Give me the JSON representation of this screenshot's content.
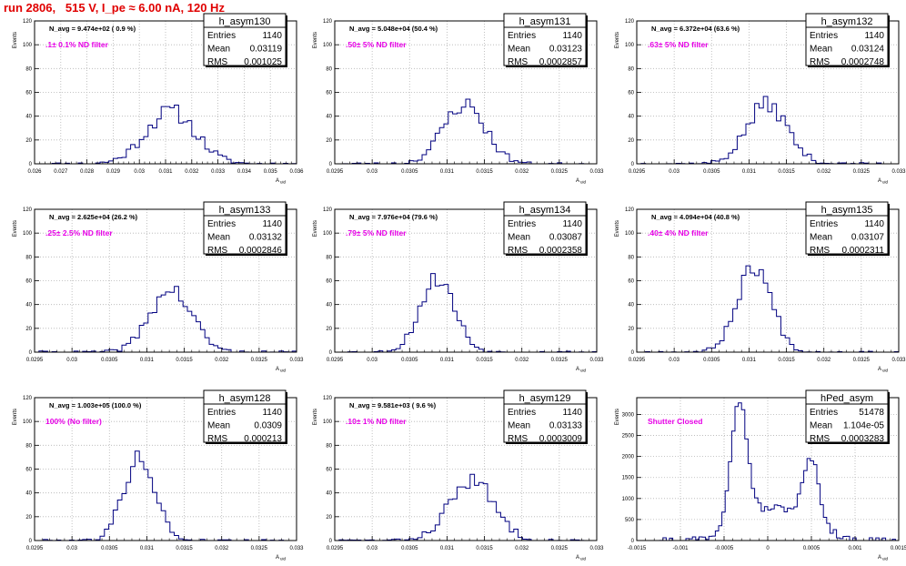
{
  "header": {
    "title": "run 2806,   515 V, I_pe ≈ 6.00 nA, 120 Hz"
  },
  "colors": {
    "hist": "#000080",
    "annotation": "#e600e6",
    "title": "#e00000",
    "grid": "#b4b4b4"
  },
  "chart_data": [
    {
      "type": "bar",
      "name": "h_asym130",
      "ylabel": "Events",
      "xlabel": "A_uid",
      "xlim": [
        0.026,
        0.036
      ],
      "ylim": [
        0,
        120
      ],
      "xticks": [
        0.026,
        0.027,
        0.028,
        0.029,
        0.03,
        0.031,
        0.032,
        0.033,
        0.034,
        0.035,
        0.036
      ],
      "xtick_labels": [
        "0.026",
        "0.027",
        "0.028",
        "0.029",
        "0.03",
        "0.031",
        "0.032",
        "0.033",
        "0.034",
        "0.035",
        "0.036"
      ],
      "yticks": [
        0,
        20,
        40,
        60,
        80,
        100,
        120
      ],
      "stats": {
        "entries_label": "Entries",
        "entries": "1140",
        "mean_label": "Mean",
        "mean": "0.03119",
        "rms_label": "RMS",
        "rms": "0.001025"
      },
      "navg": "N_avg = 9.474e+02 ( 0.9 %)",
      "filter": ".1± 0.1% ND filter",
      "hist": {
        "mean": 0.03119,
        "sigma": 0.00095,
        "peak": 44,
        "bins": 60,
        "seed": 11
      }
    },
    {
      "type": "bar",
      "name": "h_asym131",
      "ylabel": "Events",
      "xlabel": "A_uid",
      "xlim": [
        0.0295,
        0.033
      ],
      "ylim": [
        0,
        120
      ],
      "xticks": [
        0.0295,
        0.03,
        0.0305,
        0.031,
        0.0315,
        0.032,
        0.0325,
        0.033
      ],
      "xtick_labels": [
        "0.0295",
        "0.03",
        "0.0305",
        "0.031",
        "0.0315",
        "0.032",
        "0.0325",
        "0.033"
      ],
      "yticks": [
        0,
        20,
        40,
        60,
        80,
        100,
        120
      ],
      "stats": {
        "entries_label": "Entries",
        "entries": "1140",
        "mean_label": "Mean",
        "mean": "0.03123",
        "rms_label": "RMS",
        "rms": "0.0002857"
      },
      "navg": "N_avg = 5.048e+04 (50.4 %)",
      "filter": ".50± 5% ND filter",
      "hist": {
        "mean": 0.03123,
        "sigma": 0.00028,
        "peak": 50,
        "bins": 60,
        "seed": 23
      }
    },
    {
      "type": "bar",
      "name": "h_asym132",
      "ylabel": "Events",
      "xlabel": "A_uid",
      "xlim": [
        0.0295,
        0.033
      ],
      "ylim": [
        0,
        120
      ],
      "xticks": [
        0.0295,
        0.03,
        0.0305,
        0.031,
        0.0315,
        0.032,
        0.0325,
        0.033
      ],
      "xtick_labels": [
        "0.0295",
        "0.03",
        "0.0305",
        "0.031",
        "0.0315",
        "0.032",
        "0.0325",
        "0.033"
      ],
      "yticks": [
        0,
        20,
        40,
        60,
        80,
        100,
        120
      ],
      "stats": {
        "entries_label": "Entries",
        "entries": "1140",
        "mean_label": "Mean",
        "mean": "0.03124",
        "rms_label": "RMS",
        "rms": "0.0002748"
      },
      "navg": "N_avg = 6.372e+04 (63.6 %)",
      "filter": ".63± 5% ND filter",
      "hist": {
        "mean": 0.03124,
        "sigma": 0.00027,
        "peak": 50,
        "bins": 60,
        "seed": 37
      }
    },
    {
      "type": "bar",
      "name": "h_asym133",
      "ylabel": "Events",
      "xlabel": "A_uid",
      "xlim": [
        0.0295,
        0.033
      ],
      "ylim": [
        0,
        120
      ],
      "xticks": [
        0.0295,
        0.03,
        0.0305,
        0.031,
        0.0315,
        0.032,
        0.0325,
        0.033
      ],
      "xtick_labels": [
        "0.0295",
        "0.03",
        "0.0305",
        "0.031",
        "0.0315",
        "0.032",
        "0.0325",
        "0.033"
      ],
      "yticks": [
        0,
        20,
        40,
        60,
        80,
        100,
        120
      ],
      "stats": {
        "entries_label": "Entries",
        "entries": "1140",
        "mean_label": "Mean",
        "mean": "0.03132",
        "rms_label": "RMS",
        "rms": "0.0002846"
      },
      "navg": "N_avg = 2.625e+04 (26.2 %)",
      "filter": ".25± 2.5% ND filter",
      "hist": {
        "mean": 0.03132,
        "sigma": 0.00028,
        "peak": 52,
        "bins": 60,
        "seed": 41
      }
    },
    {
      "type": "bar",
      "name": "h_asym134",
      "ylabel": "Events",
      "xlabel": "A_uid",
      "xlim": [
        0.0295,
        0.033
      ],
      "ylim": [
        0,
        120
      ],
      "xticks": [
        0.0295,
        0.03,
        0.0305,
        0.031,
        0.0315,
        0.032,
        0.0325,
        0.033
      ],
      "xtick_labels": [
        "0.0295",
        "0.03",
        "0.0305",
        "0.031",
        "0.0315",
        "0.032",
        "0.0325",
        "0.033"
      ],
      "yticks": [
        0,
        20,
        40,
        60,
        80,
        100,
        120
      ],
      "stats": {
        "entries_label": "Entries",
        "entries": "1140",
        "mean_label": "Mean",
        "mean": "0.03087",
        "rms_label": "RMS",
        "rms": "0.0002358"
      },
      "navg": "N_avg = 7.976e+04 (79.6 %)",
      "filter": ".79± 5% ND filter",
      "hist": {
        "mean": 0.03087,
        "sigma": 0.00023,
        "peak": 62,
        "bins": 60,
        "seed": 53
      }
    },
    {
      "type": "bar",
      "name": "h_asym135",
      "ylabel": "Events",
      "xlabel": "A_uid",
      "xlim": [
        0.0295,
        0.033
      ],
      "ylim": [
        0,
        120
      ],
      "xticks": [
        0.0295,
        0.03,
        0.0305,
        0.031,
        0.0315,
        0.032,
        0.0325,
        0.033
      ],
      "xtick_labels": [
        "0.0295",
        "0.03",
        "0.0305",
        "0.031",
        "0.0315",
        "0.032",
        "0.0325",
        "0.033"
      ],
      "yticks": [
        0,
        20,
        40,
        60,
        80,
        100,
        120
      ],
      "stats": {
        "entries_label": "Entries",
        "entries": "1140",
        "mean_label": "Mean",
        "mean": "0.03107",
        "rms_label": "RMS",
        "rms": "0.0002311"
      },
      "navg": "N_avg = 4.094e+04 (40.8 %)",
      "filter": ".40± 4% ND filter",
      "hist": {
        "mean": 0.03107,
        "sigma": 0.00023,
        "peak": 72,
        "bins": 60,
        "seed": 67
      }
    },
    {
      "type": "bar",
      "name": "h_asym128",
      "ylabel": "Events",
      "xlabel": "A_uid",
      "xlim": [
        0.0295,
        0.033
      ],
      "ylim": [
        0,
        120
      ],
      "xticks": [
        0.0295,
        0.03,
        0.0305,
        0.031,
        0.0315,
        0.032,
        0.0325,
        0.033
      ],
      "xtick_labels": [
        "0.0295",
        "0.03",
        "0.0305",
        "0.031",
        "0.0315",
        "0.032",
        "0.0325",
        "0.033"
      ],
      "yticks": [
        0,
        20,
        40,
        60,
        80,
        100,
        120
      ],
      "stats": {
        "entries_label": "Entries",
        "entries": "1140",
        "mean_label": "Mean",
        "mean": "0.0309",
        "rms_label": "RMS",
        "rms": "0.000213"
      },
      "navg": "N_avg = 1.003e+05 (100.0 %)",
      "filter": "100% (No filter)",
      "hist": {
        "mean": 0.0309,
        "sigma": 0.00021,
        "peak": 70,
        "bins": 60,
        "seed": 79
      }
    },
    {
      "type": "bar",
      "name": "h_asym129",
      "ylabel": "Events",
      "xlabel": "A_uid",
      "xlim": [
        0.0295,
        0.033
      ],
      "ylim": [
        0,
        120
      ],
      "xticks": [
        0.0295,
        0.03,
        0.0305,
        0.031,
        0.0315,
        0.032,
        0.0325,
        0.033
      ],
      "xtick_labels": [
        "0.0295",
        "0.03",
        "0.0305",
        "0.031",
        "0.0315",
        "0.032",
        "0.0325",
        "0.033"
      ],
      "yticks": [
        0,
        20,
        40,
        60,
        80,
        100,
        120
      ],
      "stats": {
        "entries_label": "Entries",
        "entries": "1140",
        "mean_label": "Mean",
        "mean": "0.03133",
        "rms_label": "RMS",
        "rms": "0.0003009"
      },
      "navg": "N_avg = 9.581e+03 ( 9.6 %)",
      "filter": ".10± 1% ND filter",
      "hist": {
        "mean": 0.03133,
        "sigma": 0.0003,
        "peak": 50,
        "bins": 60,
        "seed": 83
      }
    },
    {
      "type": "bar",
      "name": "hPed_asym",
      "ylabel": "Events",
      "xlabel": "A_uid",
      "xlim": [
        -0.0015,
        0.0015
      ],
      "ylim": [
        0,
        3400
      ],
      "xticks": [
        -0.0015,
        -0.001,
        -0.0005,
        0,
        0.0005,
        0.001,
        0.0015
      ],
      "xtick_labels": [
        "-0.0015",
        "-0.001",
        "-0.0005",
        "0",
        "0.0005",
        "0.001",
        "0.0015"
      ],
      "yticks": [
        0,
        500,
        1000,
        1500,
        2000,
        2500,
        3000
      ],
      "stats": {
        "entries_label": "Entries",
        "entries": "51478",
        "mean_label": "Mean",
        "mean": "1.104e-05",
        "rms_label": "RMS",
        "rms": "0.0003283"
      },
      "navg": "",
      "filter": "Shutter Closed",
      "hist": {
        "bimodal": true,
        "bins": 80,
        "seed": 97
      }
    }
  ]
}
